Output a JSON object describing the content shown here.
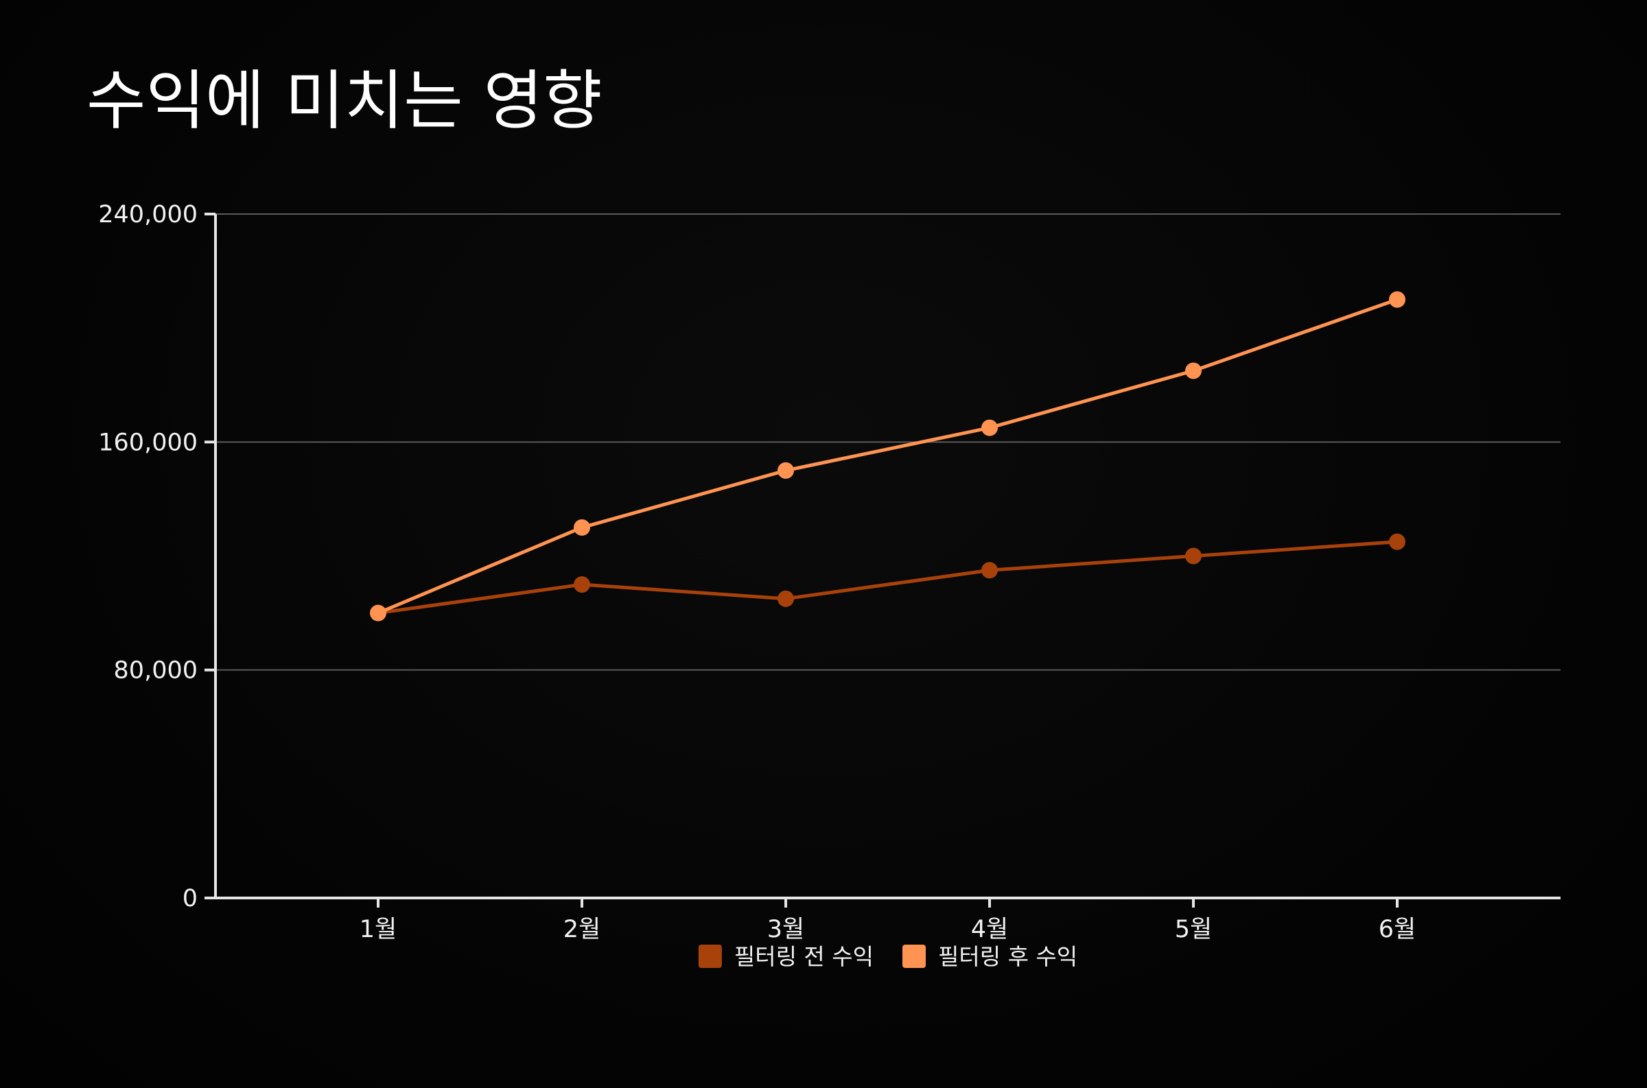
{
  "title": "수익에 미치는 영향",
  "colors": {
    "background": "#040404",
    "axis": "#e6e6e6",
    "grid": "#5a5a5a",
    "text": "#f2f2f2"
  },
  "chart_data": {
    "type": "line",
    "title": "수익에 미치는 영향",
    "xlabel": "",
    "ylabel": "",
    "categories": [
      "1월",
      "2월",
      "3월",
      "4월",
      "5월",
      "6월"
    ],
    "ylim": [
      0,
      240000
    ],
    "yticks": [
      0,
      80000,
      160000,
      240000
    ],
    "ytick_labels": [
      "0",
      "80,000",
      "160,000",
      "240,000"
    ],
    "grid": true,
    "legend_position": "bottom",
    "series": [
      {
        "name": "필터링 전 수익",
        "color": "#a8420a",
        "values": [
          100000,
          110000,
          105000,
          115000,
          120000,
          125000
        ]
      },
      {
        "name": "필터링 후 수익",
        "color": "#ff9452",
        "values": [
          100000,
          130000,
          150000,
          165000,
          185000,
          210000
        ]
      }
    ]
  }
}
